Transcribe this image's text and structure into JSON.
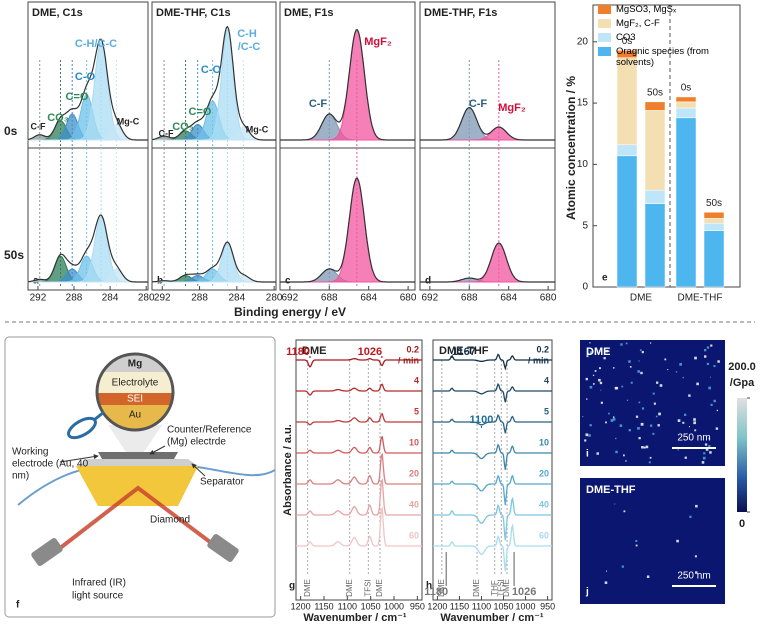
{
  "xps": {
    "x_label": "Binding energy / eV",
    "row_labels": [
      "0s",
      "50s"
    ],
    "panels": [
      {
        "title": "DME, C1s",
        "letter": "a",
        "xlim": [
          293.1,
          279.8
        ],
        "xticks": [
          292,
          288,
          284,
          280
        ],
        "colors": [
          "#8a9a9a",
          "#2e7d5b",
          "#3d8fc9",
          "#6cc1ea",
          "#a9dcf3",
          "#c6e6f5"
        ],
        "centers": [
          291.8,
          289.5,
          288.2,
          286.6,
          285.0,
          283.3
        ],
        "widths": [
          1.4,
          1.5,
          1.5,
          1.6,
          1.7,
          1.5
        ],
        "rows": [
          {
            "amplitudes": [
              0.04,
              0.15,
              0.2,
              0.35,
              0.75,
              0.12
            ]
          },
          {
            "amplitudes": [
              0.02,
              0.2,
              0.1,
              0.2,
              0.5,
              0.1
            ]
          }
        ],
        "annotations": [
          {
            "text": "C-H/C-C",
            "color": "#5aaee0"
          },
          {
            "text": "C-O",
            "color": "#2a8ac8"
          },
          {
            "text": "C=O",
            "color": "#2e8b57"
          },
          {
            "text": "CO₃",
            "color": "#2e8b57"
          },
          {
            "text": "C-F",
            "color": "#222"
          },
          {
            "text": "Mg-C",
            "color": "#222"
          }
        ]
      },
      {
        "title": "DME-THF, C1s",
        "letter": "b",
        "xlim": [
          293.1,
          279.8
        ],
        "xticks": [
          292,
          288,
          284,
          280
        ],
        "colors": [
          "#8a9a9a",
          "#2e7d5b",
          "#3d8fc9",
          "#6cc1ea",
          "#a9dcf3",
          "#c6e6f5"
        ],
        "centers": [
          291.8,
          289.5,
          288.2,
          286.6,
          285.0,
          283.3
        ],
        "widths": [
          1.4,
          1.5,
          1.5,
          1.6,
          1.5,
          1.5
        ],
        "rows": [
          {
            "amplitudes": [
              0.03,
              0.07,
              0.12,
              0.3,
              0.85,
              0.1
            ]
          },
          {
            "amplitudes": [
              0.01,
              0.05,
              0.05,
              0.1,
              0.3,
              0.05
            ]
          }
        ],
        "annotations": [
          {
            "text": "C-H",
            "color": "#5aaee0"
          },
          {
            "text": "/C-C",
            "color": "#5aaee0"
          },
          {
            "text": "C-O",
            "color": "#2a8ac8"
          },
          {
            "text": "C=O",
            "color": "#2e8b57"
          },
          {
            "text": "CO₃",
            "color": "#2e8b57"
          },
          {
            "text": "C-F",
            "color": "#222"
          },
          {
            "text": "Mg-C",
            "color": "#222"
          }
        ]
      },
      {
        "title": "DME, F1s",
        "letter": "c",
        "xlim": [
          693,
          679.3
        ],
        "xticks": [
          692,
          688,
          684,
          680
        ],
        "colors": [
          "#7d97b3",
          "#f2559f"
        ],
        "centers": [
          688.0,
          685.2
        ],
        "widths": [
          1.8,
          1.8
        ],
        "rows": [
          {
            "amplitudes": [
              0.2,
              0.85
            ]
          },
          {
            "amplitudes": [
              0.1,
              0.8
            ]
          }
        ],
        "annotations": [
          {
            "text": "MgF₂",
            "color": "#d0103a"
          },
          {
            "text": "C-F",
            "color": "#2a6080"
          }
        ]
      },
      {
        "title": "DME-THF, F1s",
        "letter": "d",
        "xlim": [
          693,
          679.3
        ],
        "xticks": [
          692,
          688,
          684,
          680
        ],
        "colors": [
          "#7d97b3",
          "#f2559f"
        ],
        "centers": [
          688.0,
          685.0
        ],
        "widths": [
          1.8,
          1.8
        ],
        "rows": [
          {
            "amplitudes": [
              0.25,
              0.1
            ]
          },
          {
            "amplitudes": [
              0.03,
              0.3
            ]
          }
        ],
        "annotations": [
          {
            "text": "C-F",
            "color": "#2a6080"
          },
          {
            "text": "MgF₂",
            "color": "#d0103a"
          }
        ]
      }
    ]
  },
  "chart_data": {
    "type": "bar",
    "stacked": true,
    "y_label": "Atomic concentration / %",
    "letter": "e",
    "categories": [
      "0s",
      "50s",
      "0s",
      "50s"
    ],
    "groups": [
      "DME",
      "DME-THF"
    ],
    "ylim": [
      0,
      23
    ],
    "yticks": [
      0,
      5,
      10,
      15,
      20
    ],
    "series": [
      {
        "name": "Oragnic species (from solvents)",
        "color": "#4db6ef",
        "values": [
          10.7,
          6.8,
          13.8,
          4.6
        ]
      },
      {
        "name": "CO3",
        "color": "#bfe6f8",
        "values": [
          0.9,
          1.1,
          0.8,
          0.6
        ]
      },
      {
        "name": "MgF₂, C-F",
        "color": "#f3dfb2",
        "values": [
          7.1,
          6.5,
          0.5,
          0.4
        ]
      },
      {
        "name": "MgSO3, MgSₓ",
        "color": "#ee7f2d",
        "values": [
          0.6,
          0.7,
          0.4,
          0.5
        ]
      }
    ]
  },
  "setup": {
    "letter": "f",
    "layers": [
      "Mg",
      "Electrolyte",
      "SEI",
      "Au"
    ],
    "counter": [
      "Counter/Reference",
      "(Mg) electrde"
    ],
    "working": [
      "Working",
      "electrode (Au, 40",
      "nm)"
    ],
    "separator": "Separator",
    "diamond": "Diamond",
    "source": [
      "Infrared (IR)",
      "light source"
    ]
  },
  "ftir": {
    "x_label": "Wavenumber / cm⁻¹",
    "y_label": "Absorbance / a.u.",
    "unit": "/ min",
    "panels": [
      {
        "title": "DME",
        "letter": "g",
        "xlim": [
          1210,
          940
        ],
        "xticks": [
          1200,
          1150,
          1100,
          1050,
          1000,
          950
        ],
        "centers": [
          1180,
          1120,
          1085,
          1052,
          1026
        ],
        "widths": [
          8,
          14,
          12,
          8,
          7
        ],
        "traces": [
          {
            "label": "0.2",
            "color": "#a51c1c",
            "amplitudes": [
              -0.5,
              0,
              0.1,
              0.1,
              -0.4
            ]
          },
          {
            "label": "4",
            "color": "#b52a2a",
            "amplitudes": [
              -0.3,
              0.1,
              0.2,
              0.2,
              0.5
            ]
          },
          {
            "label": "5",
            "color": "#c23a3a",
            "amplitudes": [
              -0.2,
              0.1,
              0.3,
              0.3,
              0.6
            ]
          },
          {
            "label": "10",
            "color": "#d05a5a",
            "amplitudes": [
              0.2,
              0.2,
              0.4,
              0.4,
              1.2
            ]
          },
          {
            "label": "20",
            "color": "#dc7e7e",
            "amplitudes": [
              0.3,
              0.3,
              0.5,
              0.6,
              2.2
            ]
          },
          {
            "label": "40",
            "color": "#e8a3a3",
            "amplitudes": [
              0.3,
              0.3,
              0.6,
              0.7,
              2.6
            ]
          },
          {
            "label": "60",
            "color": "#f2c4c4",
            "amplitudes": [
              0.3,
              0.3,
              0.6,
              0.7,
              2.8
            ]
          }
        ],
        "bands": [
          {
            "label": "DME",
            "x": 1185
          },
          {
            "label": "DME",
            "x": 1095
          },
          {
            "label": "TFSI",
            "x": 1055
          },
          {
            "label": "DME",
            "x": 1030
          }
        ],
        "callouts": [
          {
            "label": "1180",
            "x": 1180,
            "color": "#c0161e"
          },
          {
            "label": "1026",
            "x": 1026,
            "color": "#c0161e"
          }
        ]
      },
      {
        "title": "DME-THF",
        "letter": "h",
        "xlim": [
          1210,
          940
        ],
        "xticks": [
          1200,
          1150,
          1100,
          1050,
          1000,
          950
        ],
        "centers": [
          1167,
          1100,
          1062,
          1046,
          1030
        ],
        "widths": [
          6,
          16,
          6,
          5,
          6
        ],
        "traces": [
          {
            "label": "0.2",
            "color": "#14324a",
            "amplitudes": [
              0.3,
              -0.1,
              0.4,
              -0.6,
              0.3
            ]
          },
          {
            "label": "4",
            "color": "#1f4a66",
            "amplitudes": [
              0.2,
              -0.2,
              0.5,
              -0.8,
              0.3
            ]
          },
          {
            "label": "5",
            "color": "#2a6282",
            "amplitudes": [
              0.2,
              -0.2,
              0.5,
              -0.8,
              0.4
            ]
          },
          {
            "label": "10",
            "color": "#3a86ab",
            "amplitudes": [
              0.2,
              -0.4,
              0.6,
              -1.2,
              0.5
            ]
          },
          {
            "label": "20",
            "color": "#54a9cf",
            "amplitudes": [
              0.2,
              -0.5,
              0.6,
              -1.5,
              0.6
            ]
          },
          {
            "label": "40",
            "color": "#7cc5e3",
            "amplitudes": [
              0.3,
              -0.6,
              0.7,
              -1.8,
              1.2
            ]
          },
          {
            "label": "60",
            "color": "#a9dcef",
            "amplitudes": [
              0.3,
              -0.6,
              0.7,
              -1.8,
              1.5
            ]
          }
        ],
        "bands": [
          {
            "label": "DME",
            "x": 1190
          },
          {
            "label": "DME",
            "x": 1110
          },
          {
            "label": "THF",
            "x": 1070
          },
          {
            "label": "TFSI",
            "x": 1055
          },
          {
            "label": "DME",
            "x": 1042
          }
        ],
        "callouts": [
          {
            "label": "1167",
            "x": 1167,
            "color": "#1a3550"
          },
          {
            "label": "1100",
            "x": 1100,
            "color": "#1e6f9a"
          },
          {
            "label": "1180",
            "x": 1180,
            "color": "#777777"
          },
          {
            "label": "1026",
            "x": 1026,
            "color": "#777777"
          }
        ]
      }
    ]
  },
  "afm": {
    "panels": [
      {
        "title": "DME",
        "scale_bar": "250 nm",
        "letter": "i"
      },
      {
        "title": "DME-THF",
        "scale_bar": "250 nm",
        "letter": "j"
      }
    ],
    "colorbar": {
      "lim": [
        0,
        200
      ],
      "ticks": [
        {
          "value": 200,
          "label": "200.0"
        },
        0
      ],
      "unit": "/Gpa"
    }
  }
}
